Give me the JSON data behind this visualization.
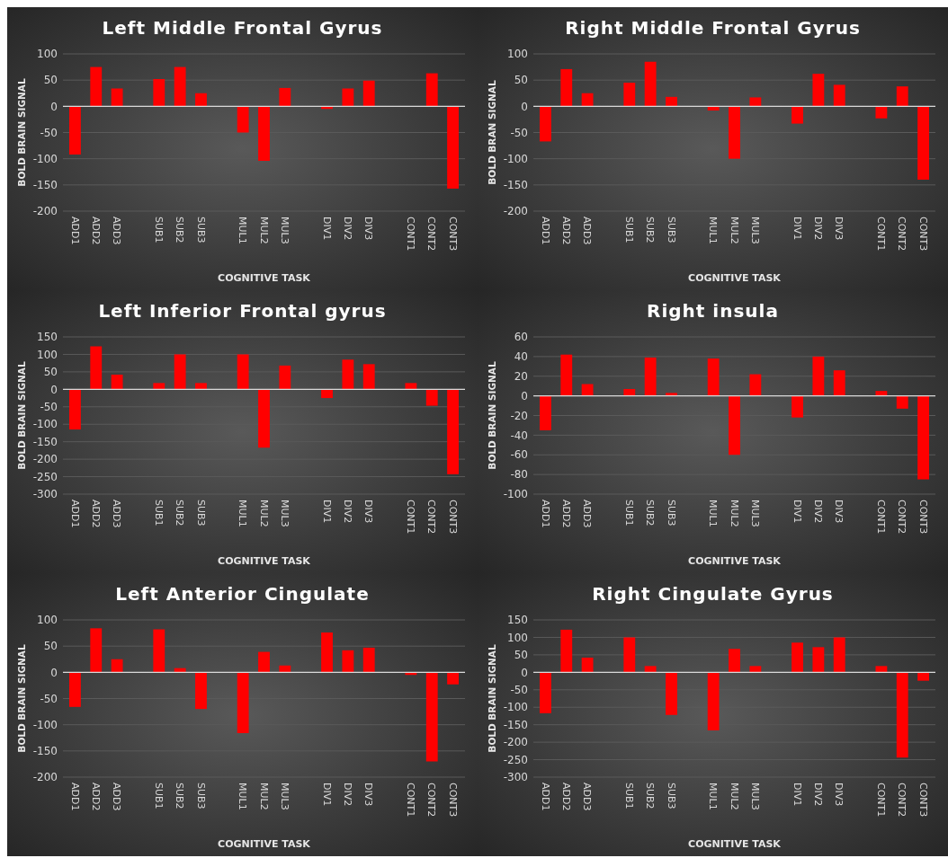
{
  "chart_data": [
    {
      "type": "bar",
      "title": "Left Middle Frontal Gyrus",
      "xlabel": "COGNITIVE TASK",
      "ylabel": "BOLD BRAIN SIGNAL",
      "categories": [
        "ADD1",
        "ADD2",
        "ADD3",
        null,
        "SUB1",
        "SUB2",
        "SUB3",
        null,
        "MUL1",
        "MUL2",
        "MUL3",
        null,
        "DIV1",
        "DIV2",
        "DIV3",
        null,
        "CONT1",
        "CONT2",
        "CONT3"
      ],
      "values": [
        -92,
        75,
        34,
        null,
        52,
        75,
        25,
        null,
        -50,
        -104,
        35,
        null,
        -5,
        34,
        49,
        null,
        -1,
        63,
        -157
      ],
      "color": "#ff0000",
      "ylim": [
        -200,
        100
      ],
      "yticks": [
        -200,
        -150,
        -100,
        -50,
        0,
        50,
        100
      ],
      "grid": "y"
    },
    {
      "type": "bar",
      "title": "Right Middle Frontal Gyrus",
      "xlabel": "COGNITIVE TASK",
      "ylabel": "BOLD BRAN SIGNAL",
      "categories": [
        "ADD1",
        "ADD2",
        "ADD3",
        null,
        "SUB1",
        "SUB2",
        "SUB3",
        null,
        "MUL1",
        "MUL2",
        "MUL3",
        null,
        "DIV1",
        "DIV2",
        "DIV3",
        null,
        "CONT1",
        "CONT2",
        "CONT3"
      ],
      "values": [
        -67,
        71,
        25,
        null,
        45,
        85,
        18,
        null,
        -8,
        -100,
        17,
        null,
        -33,
        62,
        41,
        null,
        -23,
        38,
        -140
      ],
      "color": "#ff0000",
      "ylim": [
        -200,
        100
      ],
      "yticks": [
        -200,
        -150,
        -100,
        -50,
        0,
        50,
        100
      ],
      "grid": "y"
    },
    {
      "type": "bar",
      "title": "Left Inferior Frontal gyrus",
      "xlabel": "COGNITIVE TASK",
      "ylabel": "BOLD BRAIN SIGNAL",
      "categories": [
        "ADD1",
        "ADD2",
        "ADD3",
        null,
        "SUB1",
        "SUB2",
        "SUB3",
        null,
        "MUL1",
        "MUL2",
        "MUL3",
        null,
        "DIV1",
        "DIV2",
        "DIV3",
        null,
        "CONT1",
        "CONT2",
        "CONT3"
      ],
      "values": [
        -115,
        123,
        42,
        null,
        18,
        100,
        18,
        null,
        100,
        -167,
        68,
        null,
        -25,
        85,
        72,
        null,
        18,
        -47,
        -243
      ],
      "color": "#ff0000",
      "ylim": [
        -300,
        150
      ],
      "yticks": [
        -300,
        -250,
        -200,
        -150,
        -100,
        -50,
        0,
        50,
        100,
        150
      ],
      "grid": "y"
    },
    {
      "type": "bar",
      "title": "Right insula",
      "xlabel": "COGNITIVE TASK",
      "ylabel": "BOLD BRAIN SIGNAL",
      "categories": [
        "ADD1",
        "ADD2",
        "ADD3",
        null,
        "SUB1",
        "SUB2",
        "SUB3",
        null,
        "MUL1",
        "MUL2",
        "MUL3",
        null,
        "DIV1",
        "DIV2",
        "DIV3",
        null,
        "CONT1",
        "CONT2",
        "CONT3"
      ],
      "values": [
        -35,
        42,
        12,
        null,
        7,
        39,
        3,
        null,
        38,
        -60,
        22,
        null,
        -22,
        40,
        26,
        null,
        5,
        -13,
        -85
      ],
      "color": "#ff0000",
      "ylim": [
        -100,
        60
      ],
      "yticks": [
        -100,
        -80,
        -60,
        -40,
        -20,
        0,
        20,
        40,
        60
      ],
      "grid": "y"
    },
    {
      "type": "bar",
      "title": "Left Anterior Cingulate",
      "xlabel": "COGNITIVE TASK",
      "ylabel": "BOLD BRAIN SIGNAL",
      "categories": [
        "ADD1",
        "ADD2",
        "ADD3",
        null,
        "SUB1",
        "SUB2",
        "SUB3",
        null,
        "MUL1",
        "MUL2",
        "MUL3",
        null,
        "DIV1",
        "DIV2",
        "DIV3",
        null,
        "CONT1",
        "CONT2",
        "CONT3"
      ],
      "values": [
        -66,
        84,
        25,
        null,
        82,
        8,
        -70,
        null,
        -116,
        39,
        13,
        null,
        76,
        42,
        47,
        null,
        -5,
        -170,
        -23
      ],
      "color": "#ff0000",
      "ylim": [
        -200,
        100
      ],
      "yticks": [
        -200,
        -150,
        -100,
        -50,
        0,
        50,
        100
      ],
      "grid": "y"
    },
    {
      "type": "bar",
      "title": "Right Cingulate Gyrus",
      "xlabel": "COGNITIVE TASK",
      "ylabel": "BOLD BRAIN SIGNAL",
      "categories": [
        "ADD1",
        "ADD2",
        "ADD3",
        null,
        "SUB1",
        "SUB2",
        "SUB3",
        null,
        "MUL1",
        "MUL2",
        "MUL3",
        null,
        "DIV1",
        "DIV2",
        "DIV3",
        null,
        "CONT1",
        "CONT2",
        "CONT3"
      ],
      "values": [
        -117,
        122,
        42,
        null,
        100,
        18,
        -122,
        null,
        -166,
        67,
        18,
        null,
        85,
        72,
        100,
        null,
        18,
        -244,
        -24
      ],
      "color": "#ff0000",
      "ylim": [
        -300,
        150
      ],
      "yticks": [
        -300,
        -250,
        -200,
        -150,
        -100,
        -50,
        0,
        50,
        100,
        150
      ],
      "grid": "y"
    }
  ]
}
